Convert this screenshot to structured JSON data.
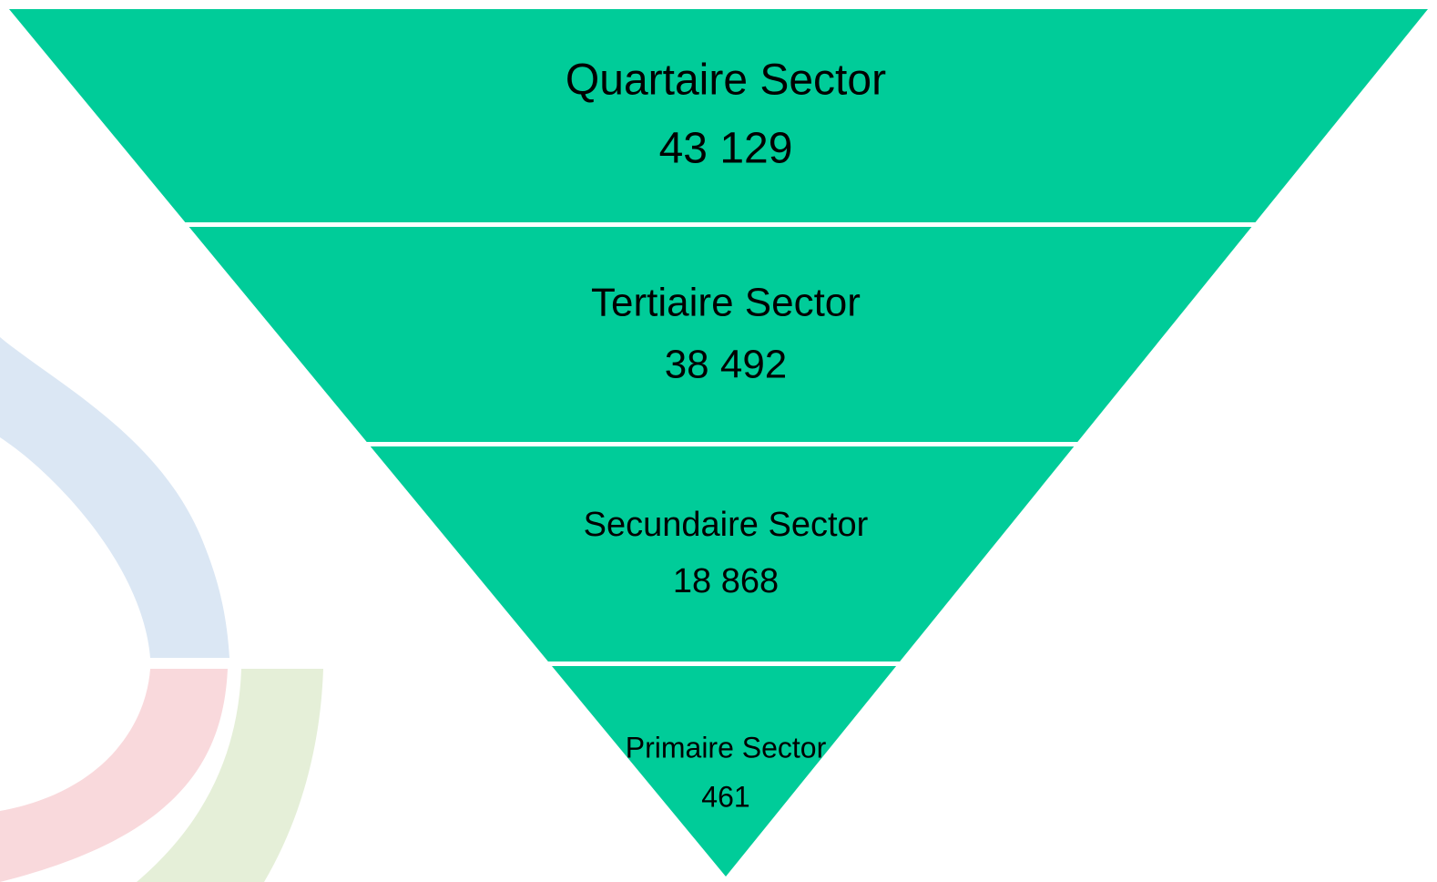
{
  "levels": [
    {
      "label": "Quartaire Sector",
      "value": "43 129"
    },
    {
      "label": "Tertiaire Sector",
      "value": "38 492"
    },
    {
      "label": "Secundaire Sector",
      "value": "18 868"
    },
    {
      "label": "Primaire Sector",
      "value": "461"
    }
  ]
}
